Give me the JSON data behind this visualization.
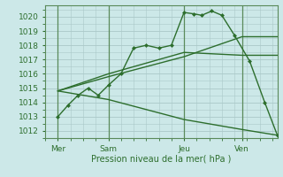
{
  "xlabel": "Pression niveau de la mer( hPa )",
  "ylim": [
    1011.5,
    1020.8
  ],
  "xlim": [
    0,
    9.2
  ],
  "bg_color": "#cce8e8",
  "grid_color": "#aac8c8",
  "line_color": "#2d6e2d",
  "xtick_positions": [
    0.5,
    2.5,
    5.5,
    7.8
  ],
  "xtick_labels": [
    "Mer",
    "Sam",
    "Jeu",
    "Ven"
  ],
  "ytick_positions": [
    1012,
    1013,
    1014,
    1015,
    1016,
    1017,
    1018,
    1019,
    1020
  ],
  "vline_positions": [
    0.5,
    2.5,
    5.5,
    7.8
  ],
  "line1_x": [
    0.5,
    0.9,
    1.3,
    1.7,
    2.1,
    2.5,
    3.0,
    3.5,
    4.0,
    4.5,
    5.0,
    5.5,
    5.9,
    6.2,
    6.6,
    7.0,
    7.5,
    8.1,
    8.7,
    9.2
  ],
  "line1_y": [
    1013.0,
    1013.8,
    1014.5,
    1015.0,
    1014.5,
    1015.2,
    1016.0,
    1017.8,
    1018.0,
    1017.8,
    1018.0,
    1020.3,
    1020.2,
    1020.1,
    1020.4,
    1020.1,
    1018.7,
    1016.9,
    1014.0,
    1011.7
  ],
  "line2_x": [
    0.5,
    2.5,
    5.5,
    7.8,
    9.2
  ],
  "line2_y": [
    1014.8,
    1015.8,
    1017.2,
    1018.6,
    1018.6
  ],
  "line3_x": [
    0.5,
    2.5,
    5.5,
    7.8,
    9.2
  ],
  "line3_y": [
    1014.8,
    1016.0,
    1017.5,
    1017.3,
    1017.3
  ],
  "line4_x": [
    0.5,
    2.5,
    5.5,
    7.8,
    9.2
  ],
  "line4_y": [
    1014.8,
    1014.2,
    1012.8,
    1012.1,
    1011.7
  ]
}
